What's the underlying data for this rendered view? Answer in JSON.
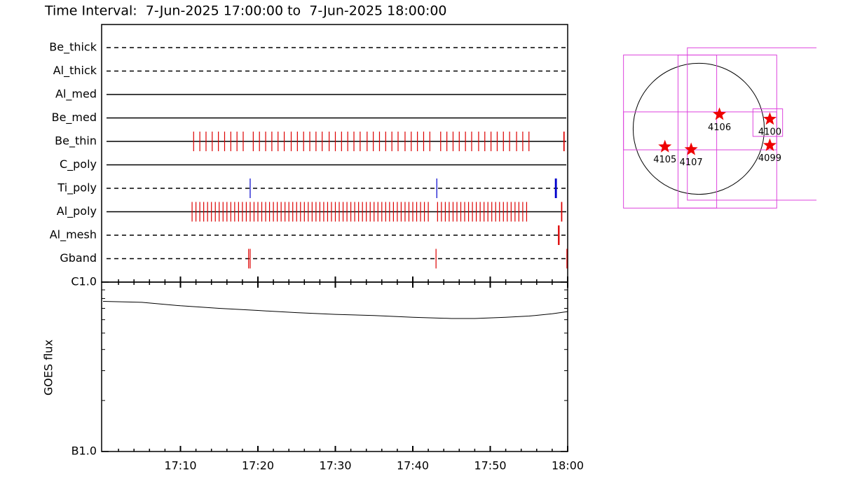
{
  "chart_data": [
    {
      "type": "timeline",
      "title": "Time Interval:  7-Jun-2025 17:00:00 to  7-Jun-2025 18:00:00",
      "xlim": [
        0,
        60
      ],
      "rows": [
        {
          "name": "Be_thick",
          "style": "dashed",
          "color": "#dd0000",
          "times": []
        },
        {
          "name": "Al_thick",
          "style": "dashed",
          "color": "#dd0000",
          "times": []
        },
        {
          "name": "Al_med",
          "style": "solid",
          "color": "#dd0000",
          "times": []
        },
        {
          "name": "Be_med",
          "style": "solid",
          "color": "#dd0000",
          "times": []
        },
        {
          "name": "Be_thin",
          "style": "solid",
          "color": "#dd0000",
          "times": [
            11.7,
            12.5,
            13.3,
            14.1,
            14.9,
            15.7,
            16.5,
            17.3,
            18.1,
            19.4,
            20.2,
            21.0,
            21.8,
            22.6,
            23.4,
            24.3,
            25.1,
            25.9,
            26.7,
            27.5,
            28.3,
            29.2,
            30.0,
            30.8,
            31.6,
            32.4,
            33.2,
            34.1,
            34.9,
            35.7,
            36.5,
            37.3,
            38.1,
            39.0,
            39.8,
            40.6,
            41.4,
            42.2,
            43.6,
            44.4,
            45.2,
            46.0,
            46.8,
            47.6,
            48.5,
            49.3,
            50.1,
            50.9,
            51.7,
            52.5,
            53.4,
            54.2,
            55.0,
            59.5,
            59.55
          ]
        },
        {
          "name": "C_poly",
          "style": "solid",
          "color": "#dd0000",
          "times": []
        },
        {
          "name": "Ti_poly",
          "style": "dashed",
          "color": "#0000cc",
          "times": [
            19.0,
            43.1,
            58.4,
            58.45,
            58.5,
            58.55
          ]
        },
        {
          "name": "Al_poly",
          "style": "solid",
          "color": "#dd0000",
          "times": [
            11.5,
            12.0,
            12.5,
            13.0,
            13.5,
            14.0,
            14.5,
            15.0,
            15.5,
            16.0,
            16.5,
            17.0,
            17.5,
            18.0,
            18.5,
            19.0,
            19.5,
            20.0,
            20.5,
            21.0,
            21.5,
            22.0,
            22.5,
            23.0,
            23.5,
            24.0,
            24.5,
            25.0,
            25.5,
            26.0,
            26.5,
            27.0,
            27.5,
            28.0,
            28.5,
            29.0,
            29.5,
            30.0,
            30.5,
            31.0,
            31.5,
            32.0,
            32.5,
            33.0,
            33.5,
            34.0,
            34.5,
            35.0,
            35.5,
            36.0,
            36.5,
            37.0,
            37.5,
            38.0,
            38.5,
            39.0,
            39.5,
            40.0,
            40.5,
            41.0,
            41.5,
            42.0,
            43.2,
            43.7,
            44.2,
            44.7,
            45.2,
            45.7,
            46.2,
            46.7,
            47.2,
            47.7,
            48.2,
            48.7,
            49.2,
            49.7,
            50.2,
            50.7,
            51.2,
            51.7,
            52.2,
            52.7,
            53.2,
            53.7,
            54.2,
            54.7,
            59.2,
            59.25
          ]
        },
        {
          "name": "Al_mesh",
          "style": "dashed",
          "color": "#dd0000",
          "times": [
            58.8,
            58.85,
            58.9
          ]
        },
        {
          "name": "Gband",
          "style": "dashed",
          "color": "#dd0000",
          "times": [
            18.8,
            19.0,
            43.0,
            59.9
          ]
        }
      ]
    },
    {
      "type": "line",
      "ylabel": "GOES flux",
      "xlim": [
        0,
        60
      ],
      "xticks": [
        {
          "value": 10,
          "label": "17:10"
        },
        {
          "value": 20,
          "label": "17:20"
        },
        {
          "value": 30,
          "label": "17:30"
        },
        {
          "value": 40,
          "label": "17:40"
        },
        {
          "value": 50,
          "label": "17:50"
        },
        {
          "value": 60,
          "label": "18:00"
        }
      ],
      "xminorticks": [
        2,
        4,
        6,
        8,
        12,
        14,
        16,
        18,
        22,
        24,
        26,
        28,
        32,
        34,
        36,
        38,
        42,
        44,
        46,
        48,
        52,
        54,
        56,
        58
      ],
      "ylim": [
        1e-07,
        1e-06
      ],
      "log_scale": true,
      "yticks": [
        {
          "value": 1e-07,
          "label": "B1.0"
        },
        {
          "value": 1e-06,
          "label": "C1.0"
        }
      ],
      "yminorticks": [
        2e-07,
        3e-07,
        4e-07,
        5e-07,
        6e-07,
        7e-07,
        8e-07,
        9e-07
      ],
      "x": [
        0,
        5,
        10,
        15,
        20,
        25,
        30,
        35,
        40,
        45,
        48,
        52,
        55,
        58,
        60
      ],
      "values": [
        7.7e-07,
        7.6e-07,
        7.25e-07,
        7e-07,
        6.8e-07,
        6.6e-07,
        6.45e-07,
        6.35e-07,
        6.2e-07,
        6.1e-07,
        6.1e-07,
        6.2e-07,
        6.3e-07,
        6.5e-07,
        6.7e-07
      ],
      "color": "#000000"
    },
    {
      "type": "map",
      "radius": 950,
      "box_color": "#dd44dd",
      "star_color": "#ee0000",
      "boxes": [
        [
          20,
          -40,
          2220,
          2220
        ],
        [
          940,
          70,
          2210,
          2210
        ],
        [
          20,
          -30,
          2220,
          550
        ],
        [
          -20,
          -40,
          560,
          2220
        ],
        [
          1000,
          90,
          430,
          400
        ]
      ],
      "stars": [
        {
          "label": "4105",
          "x": -490,
          "y": -260
        },
        {
          "label": "4107",
          "x": -110,
          "y": -300
        },
        {
          "label": "4106",
          "x": 300,
          "y": 210
        },
        {
          "label": "4100",
          "x": 1030,
          "y": 140
        },
        {
          "label": "4099",
          "x": 1030,
          "y": -240
        }
      ]
    }
  ]
}
